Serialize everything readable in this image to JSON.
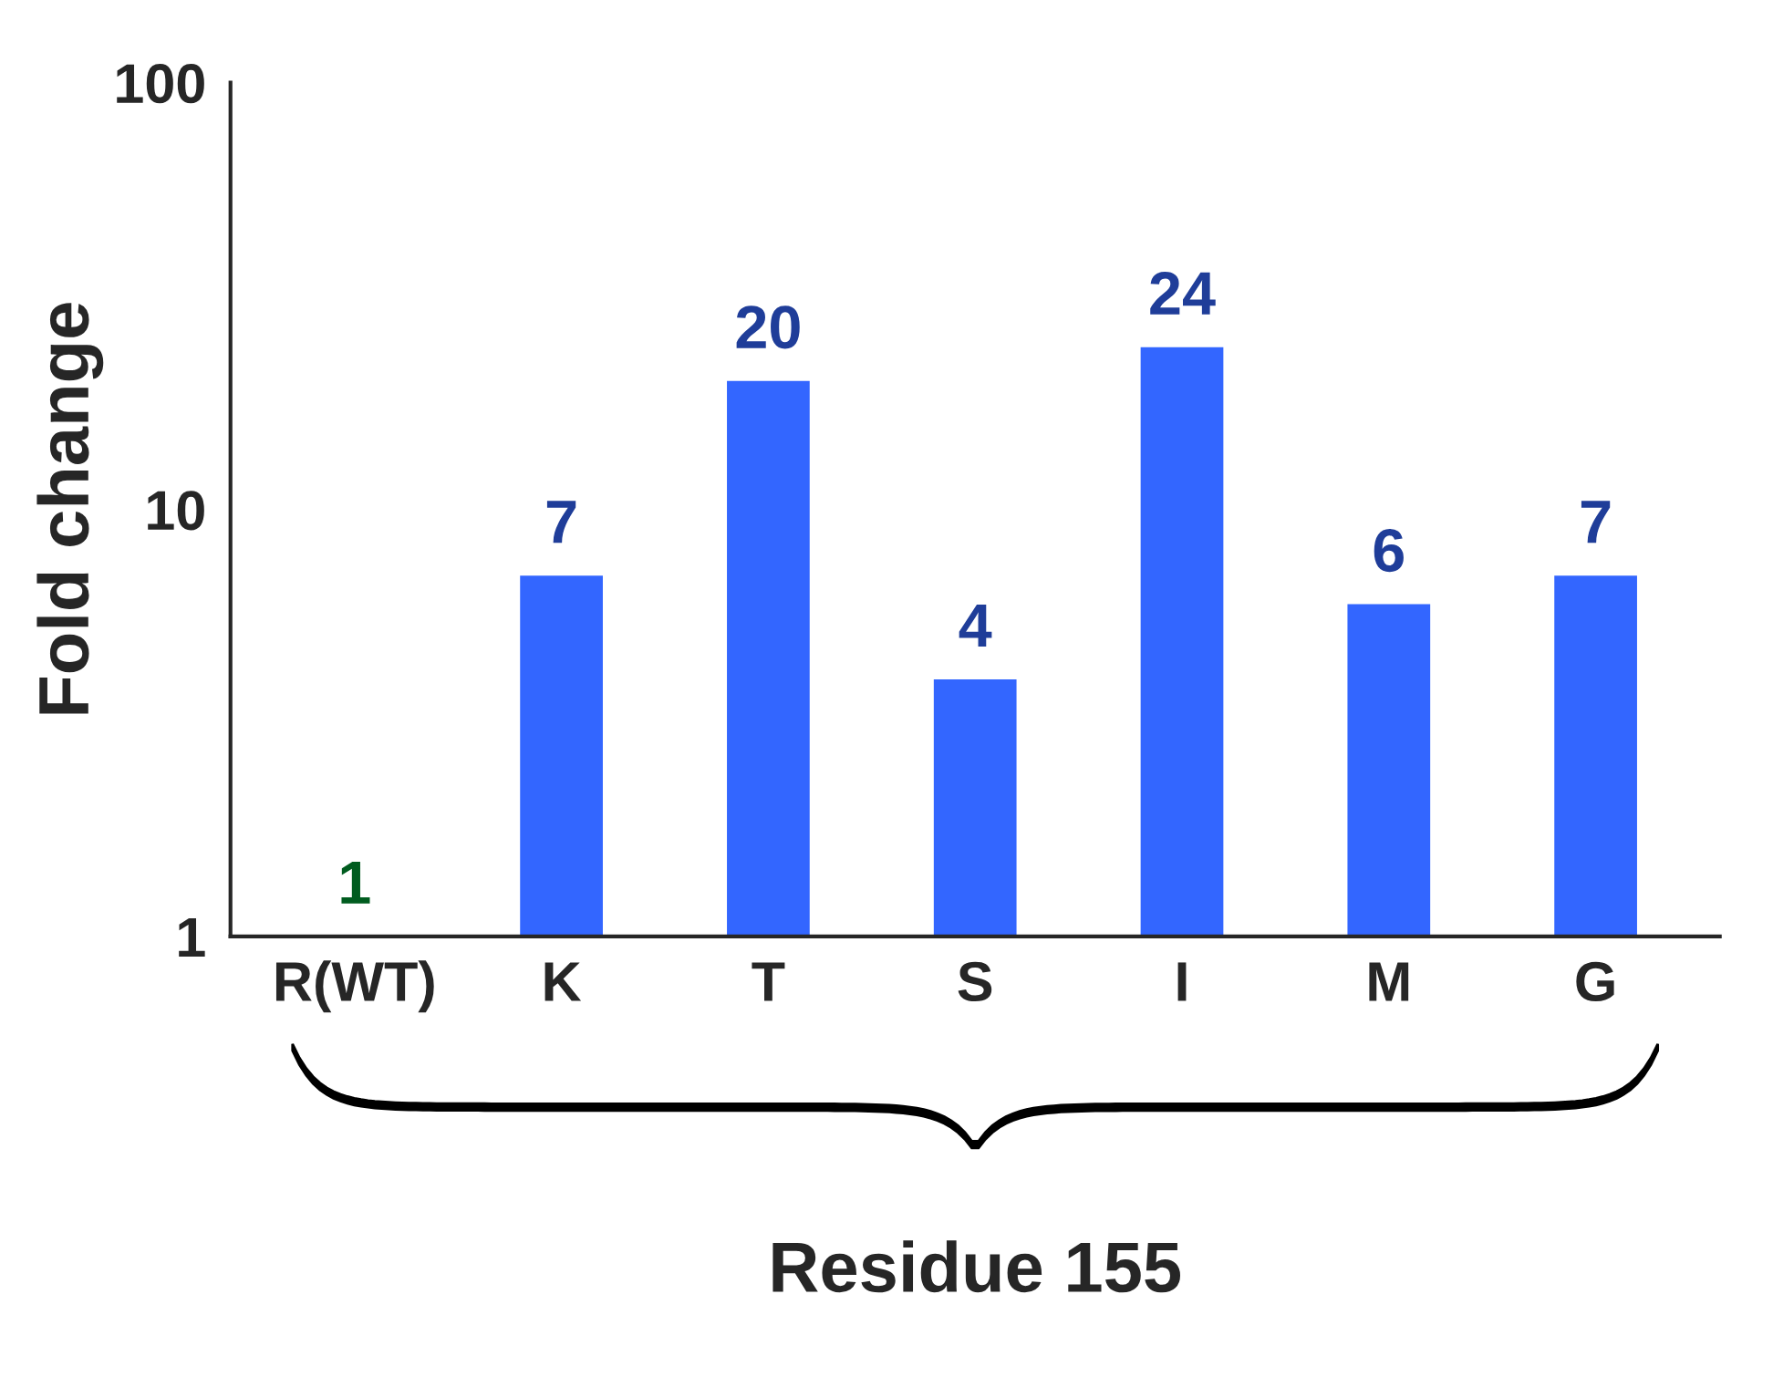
{
  "chart_data": {
    "type": "bar",
    "ylabel": "Fold change",
    "xlabel": "Residue 155",
    "categories": [
      "R(WT)",
      "K",
      "T",
      "S",
      "I",
      "M",
      "G"
    ],
    "values": [
      1,
      7,
      20,
      4,
      24,
      6,
      7
    ],
    "colors": [
      "#009933",
      "#3366ff",
      "#3366ff",
      "#3366ff",
      "#3366ff",
      "#3366ff",
      "#3366ff"
    ],
    "log": true,
    "ylim": [
      1,
      100
    ],
    "yticks": [
      1,
      10,
      100
    ],
    "data_labels": true,
    "grid": false,
    "legend": false
  }
}
